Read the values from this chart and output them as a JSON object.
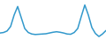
{
  "x": [
    0,
    1,
    2,
    3,
    4,
    5,
    6,
    7,
    8,
    9,
    10,
    11,
    12,
    13,
    14,
    15,
    16,
    17,
    18,
    19,
    20,
    21,
    22,
    23,
    24,
    25,
    26,
    27,
    28,
    29,
    30
  ],
  "y": [
    -0.1,
    0.0,
    0.3,
    1.2,
    3.5,
    5.2,
    3.0,
    0.8,
    0.0,
    -0.3,
    -0.4,
    -0.35,
    -0.3,
    -0.25,
    -0.1,
    0.05,
    0.15,
    0.05,
    -0.1,
    -0.3,
    -0.35,
    0.0,
    0.8,
    3.2,
    5.5,
    3.5,
    1.0,
    -0.2,
    -0.8,
    -0.3,
    0.4
  ],
  "line_color": "#3399cc",
  "linewidth": 1.1,
  "background_color": "#ffffff",
  "ylim_min": -1.5,
  "ylim_max": 6.5
}
